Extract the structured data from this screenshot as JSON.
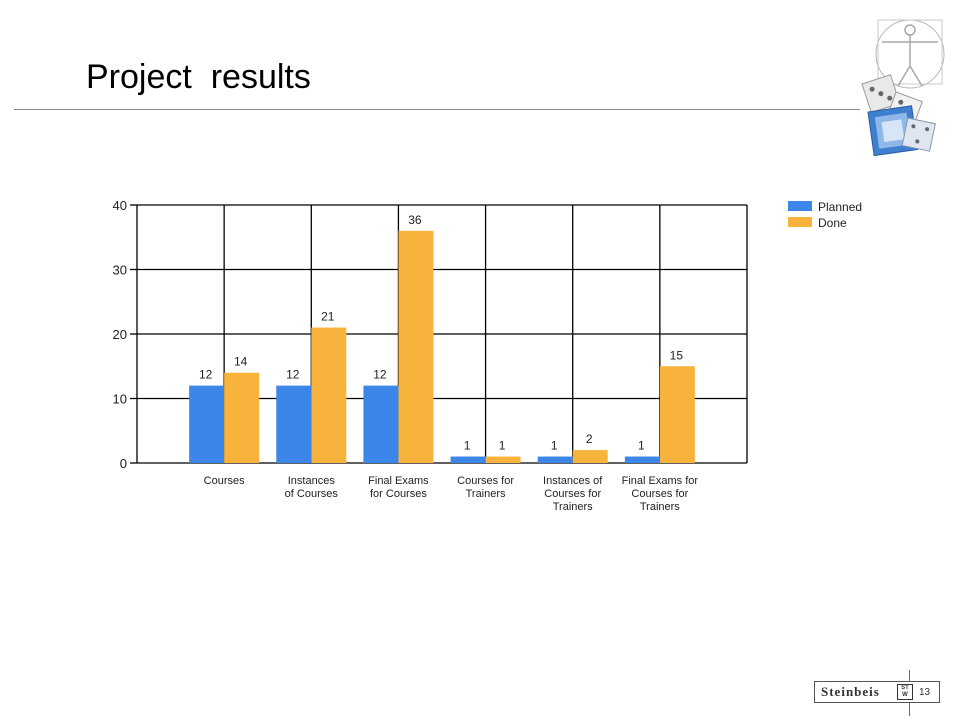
{
  "slide": {
    "title": "Project  results",
    "page_number": "13",
    "brand": "Steinbeis",
    "brand_mark": "ST W"
  },
  "colors": {
    "planned": "#3b86e8",
    "done": "#f8b33d",
    "grid": "#000000",
    "rule": "#8c8c8c"
  },
  "chart_data": {
    "type": "bar",
    "categories": [
      "Courses",
      "Instances\nof Courses",
      "Final Exams\nfor Courses",
      "Courses for\nTrainers",
      "Instances of\nCourses for\nTrainers",
      "Final Exams for\nCourses for\nTrainers"
    ],
    "series": [
      {
        "name": "Planned",
        "color": "#3b86e8",
        "values": [
          12,
          12,
          12,
          1,
          1,
          1
        ]
      },
      {
        "name": "Done",
        "color": "#f8b33d",
        "values": [
          14,
          21,
          36,
          1,
          2,
          15
        ]
      }
    ],
    "ylim": [
      0,
      40
    ],
    "yticks": [
      0,
      10,
      20,
      30,
      40
    ],
    "grid": true,
    "legend": "top-right",
    "data_labels": true
  }
}
